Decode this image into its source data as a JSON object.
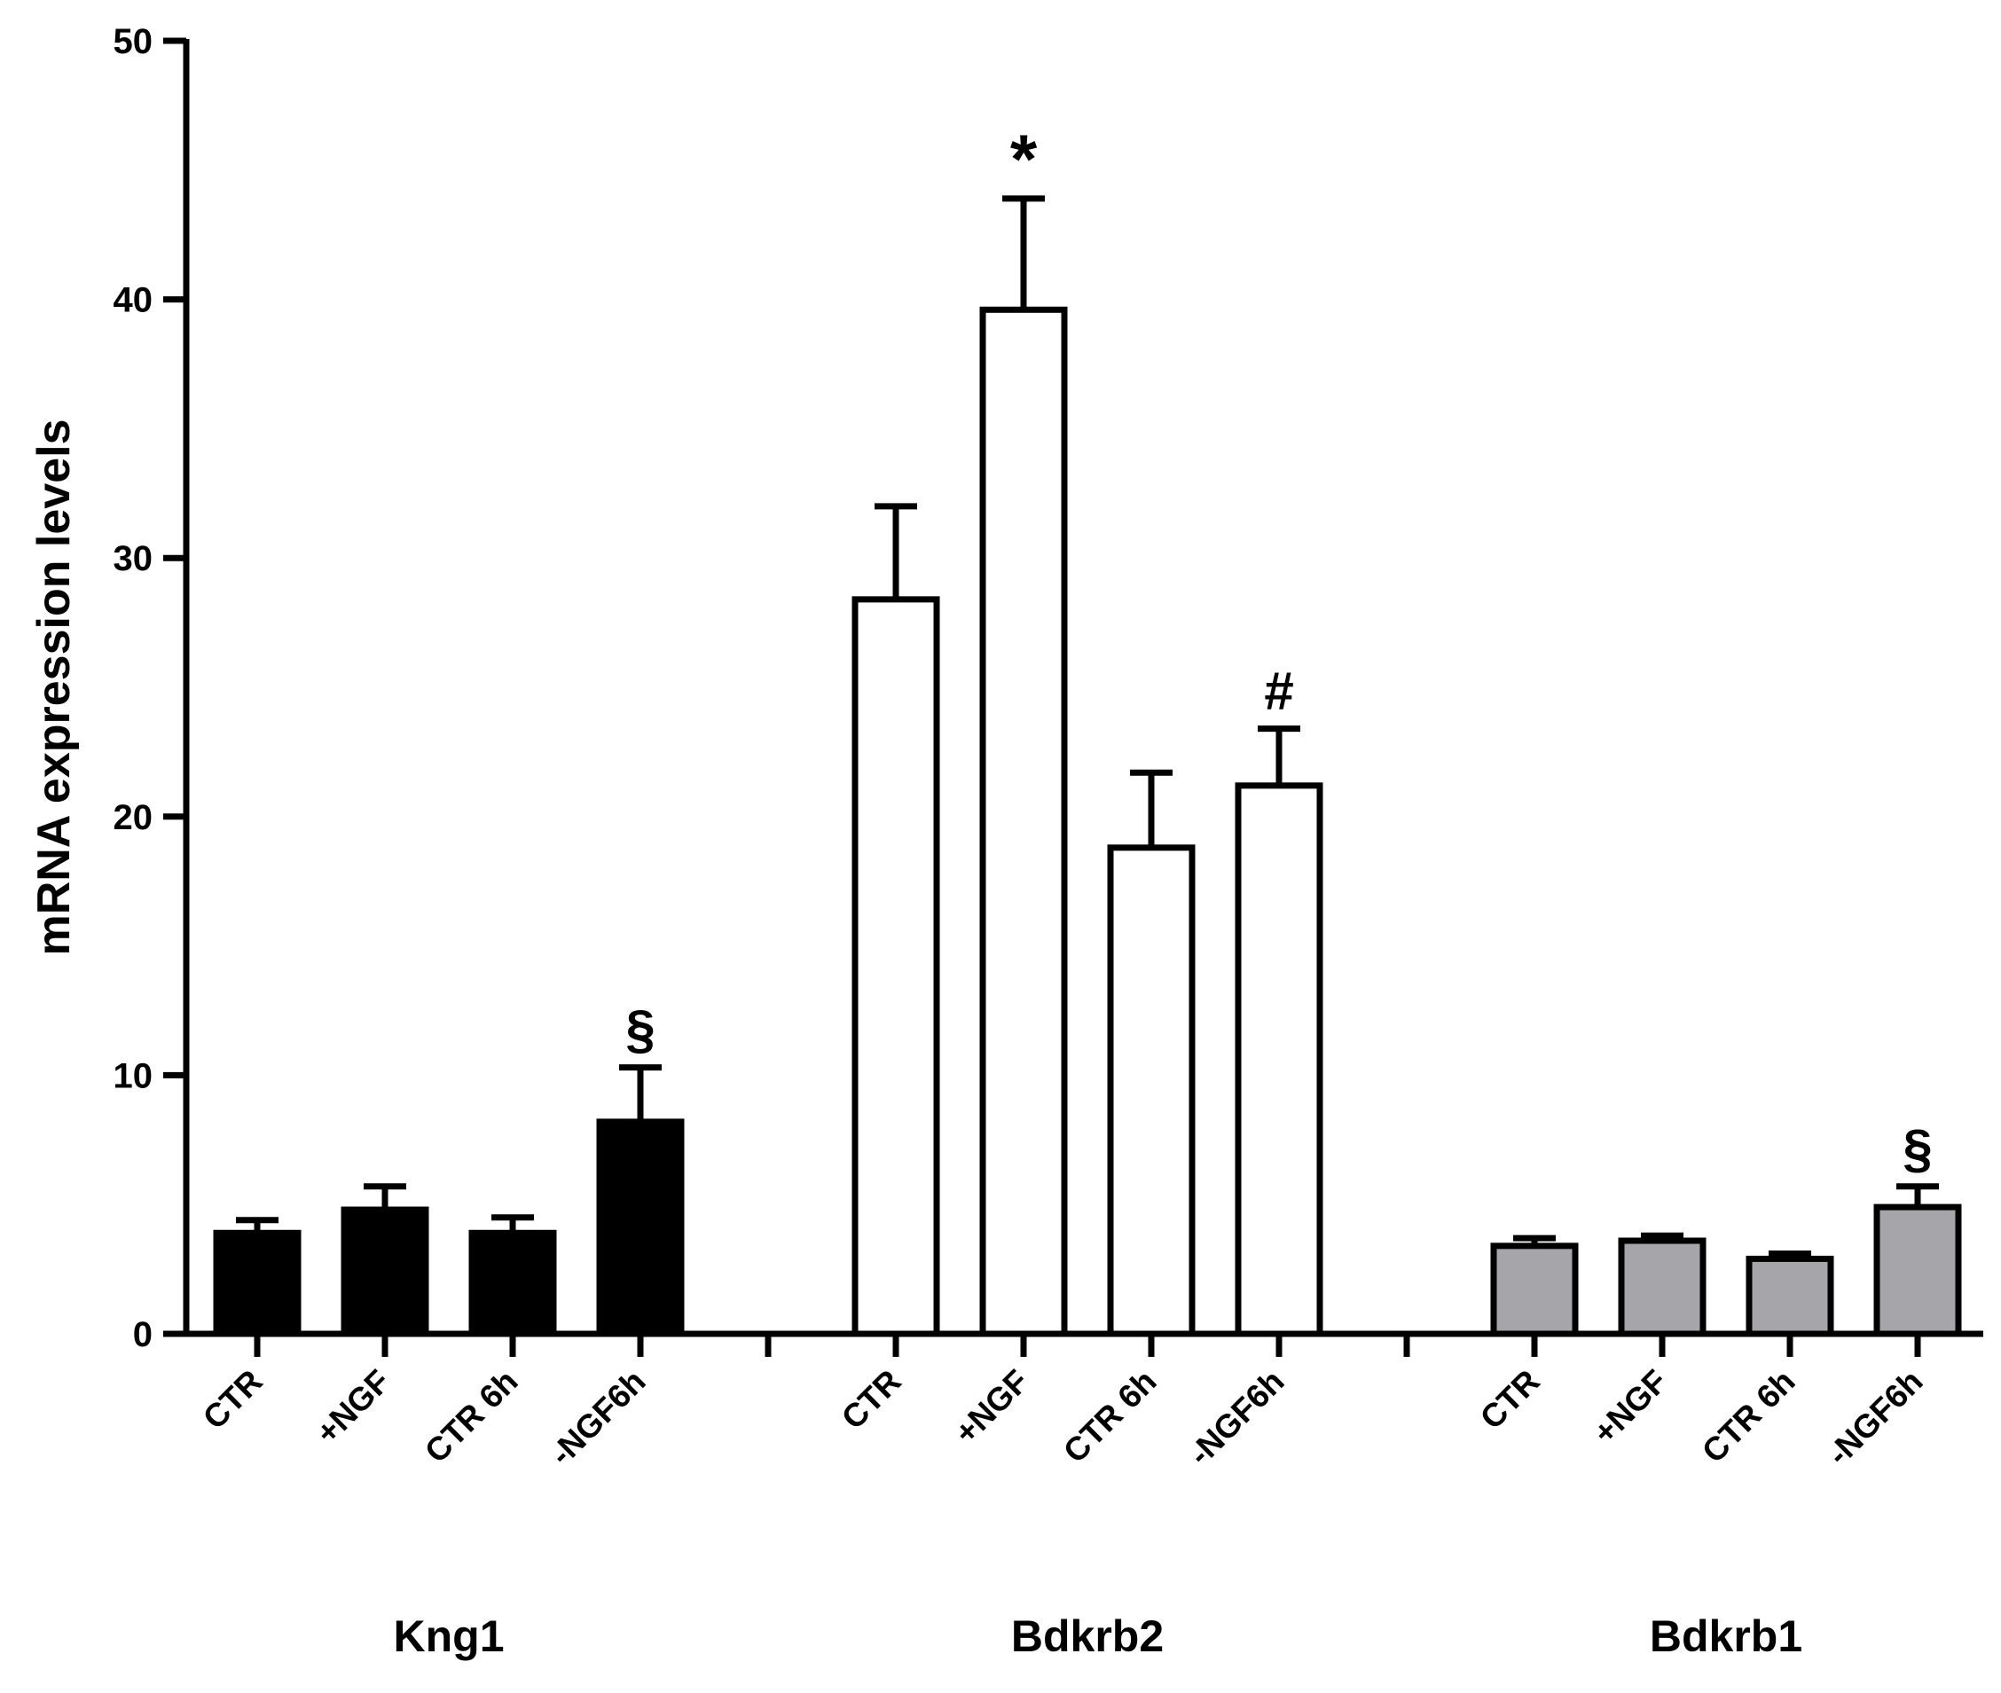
{
  "chart_data": {
    "type": "bar",
    "ylabel": "mRNA  expression levels",
    "xlabel": "",
    "ylim": [
      0,
      50
    ],
    "yticks": [
      0,
      10,
      20,
      30,
      40,
      50
    ],
    "categories": [
      "CTR",
      "+NGF",
      "CTR 6h",
      "-NGF6h"
    ],
    "groups": [
      {
        "name": "Kng1",
        "color": "#000000",
        "values": [
          3.9,
          4.8,
          3.9,
          8.2
        ],
        "errors": [
          0.5,
          0.9,
          0.6,
          2.1
        ],
        "annotations": [
          "",
          "",
          "",
          "§"
        ]
      },
      {
        "name": "Bdkrb2",
        "color": "#ffffff",
        "values": [
          28.4,
          39.6,
          18.8,
          21.2
        ],
        "errors": [
          3.6,
          4.3,
          2.9,
          2.2
        ],
        "annotations": [
          "",
          "*",
          "",
          "#"
        ]
      },
      {
        "name": "Bdkrb1",
        "color": "#a6a6aa",
        "values": [
          3.4,
          3.6,
          2.9,
          4.9
        ],
        "errors": [
          0.3,
          0.2,
          0.2,
          0.8
        ],
        "annotations": [
          "",
          "",
          "",
          "§"
        ]
      }
    ]
  }
}
